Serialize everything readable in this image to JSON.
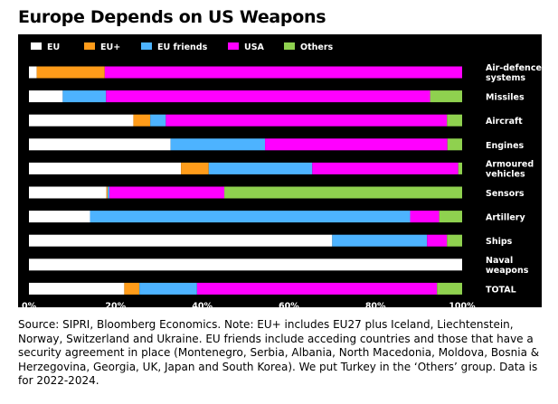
{
  "title": "Europe Depends on US Weapons",
  "note": "Source: SIPRI, Bloomberg Economics. Note: EU+ includes EU27 plus Iceland, Liechtenstein, Norway, Switzerland and Ukraine. EU friends include acceding countries and those that have a security agreement in place (Montenegro, Serbia, Albania, North Macedonia, Moldova, Bosnia & Herzegovina, Georgia, UK, Japan and South Korea). We put Turkey in the ‘Others’ group. Data is for 2022-2024.",
  "chart_data": {
    "type": "bar",
    "orientation": "horizontal",
    "stacked": true,
    "legend_position": "top",
    "xlim": [
      0,
      100
    ],
    "xticks": [
      "0%",
      "20%",
      "40%",
      "60%",
      "80%",
      "100%"
    ],
    "categories": [
      [
        "Air-defence",
        "systems"
      ],
      [
        "Missiles"
      ],
      [
        "Aircraft"
      ],
      [
        "Engines"
      ],
      [
        "Armoured",
        "vehicles"
      ],
      [
        "Sensors"
      ],
      [
        "Artillery"
      ],
      [
        "Ships"
      ],
      [
        "Naval",
        "weapons"
      ],
      [
        "TOTAL"
      ]
    ],
    "series": [
      {
        "name": "EU",
        "color": "#ffffff",
        "values": [
          1.8,
          7.8,
          24.1,
          32.7,
          35.1,
          17.9,
          14.1,
          70.0,
          100,
          22.0
        ]
      },
      {
        "name": "EU+",
        "color": "#ff9c1a",
        "values": [
          15.7,
          0,
          3.9,
          0,
          6.4,
          0.3,
          0,
          0,
          0,
          3.5
        ]
      },
      {
        "name": "EU friends",
        "color": "#4db3ff",
        "values": [
          0,
          10.0,
          3.6,
          21.8,
          23.9,
          0.4,
          73.9,
          21.9,
          0,
          13.3
        ]
      },
      {
        "name": "USA",
        "color": "#ff00ff",
        "values": [
          82.5,
          74.8,
          64.9,
          42.1,
          33.7,
          26.5,
          6.7,
          4.6,
          0,
          55.4
        ]
      },
      {
        "name": "Others",
        "color": "#8fd14f",
        "values": [
          0,
          7.4,
          3.5,
          3.4,
          0.9,
          54.9,
          5.3,
          3.5,
          0,
          5.8
        ]
      }
    ]
  }
}
